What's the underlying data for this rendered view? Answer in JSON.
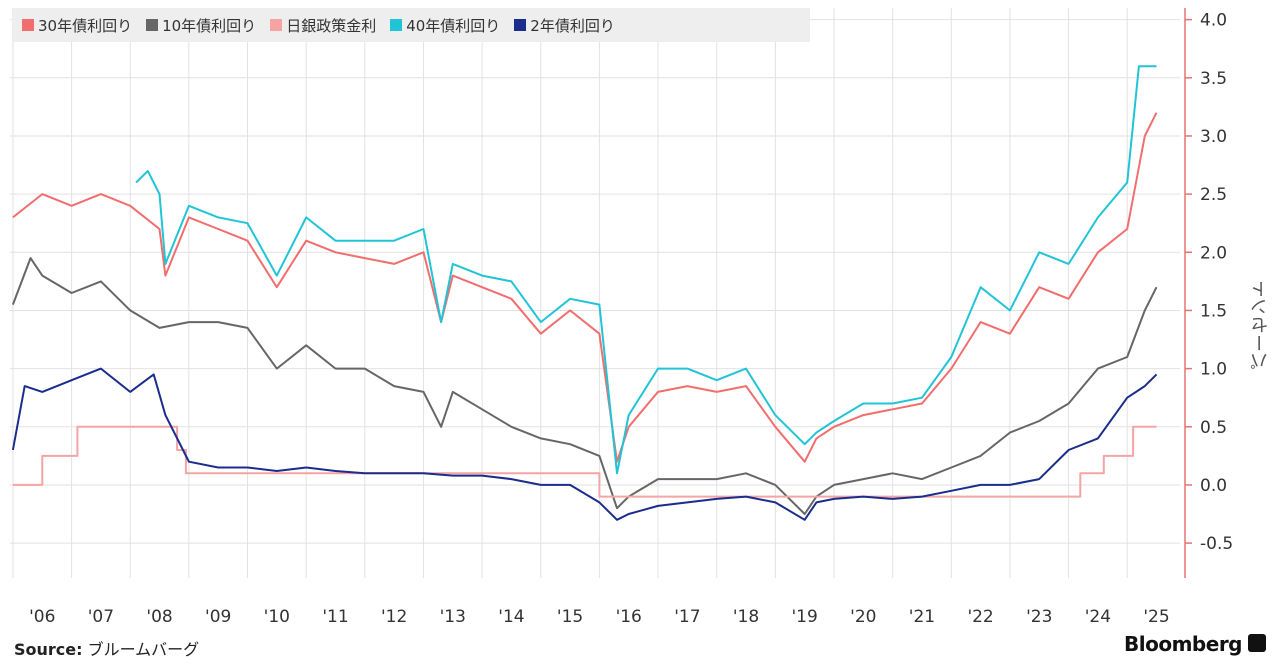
{
  "chart_data": {
    "type": "line",
    "title": "",
    "xlabel": "",
    "ylabel": "パーセント",
    "ylim": [
      -0.8,
      4.1
    ],
    "x_ticks": [
      "'06",
      "'07",
      "'08",
      "'09",
      "'10",
      "'11",
      "'12",
      "'13",
      "'14",
      "'15",
      "'16",
      "'17",
      "'18",
      "'19",
      "'20",
      "'21",
      "'22",
      "'23",
      "'24",
      "'25"
    ],
    "y_ticks": [
      4.0,
      3.5,
      3.0,
      2.5,
      2.0,
      1.5,
      1.0,
      0.5,
      0.0,
      -0.5
    ],
    "y_tick_labels": [
      "4.0",
      "3.5",
      "3.0",
      "2.5",
      "2.0",
      "1.5",
      "1.0",
      "0.5",
      "0.0",
      "-0.5"
    ],
    "grid": true,
    "legend_position": "top-left",
    "series": [
      {
        "name": "30年債利回り",
        "color": "#f26d6d",
        "x": [
          2006.0,
          2006.5,
          2007.0,
          2007.5,
          2008.0,
          2008.5,
          2008.6,
          2009.0,
          2009.5,
          2010.0,
          2010.5,
          2011.0,
          2011.5,
          2012.0,
          2012.5,
          2013.0,
          2013.3,
          2013.5,
          2014.0,
          2014.5,
          2015.0,
          2015.5,
          2016.0,
          2016.3,
          2016.5,
          2017.0,
          2017.5,
          2018.0,
          2018.5,
          2019.0,
          2019.5,
          2019.7,
          2020.0,
          2020.5,
          2021.0,
          2021.5,
          2022.0,
          2022.5,
          2023.0,
          2023.5,
          2024.0,
          2024.5,
          2025.0,
          2025.3,
          2025.5
        ],
        "y": [
          2.3,
          2.5,
          2.4,
          2.5,
          2.4,
          2.2,
          1.8,
          2.3,
          2.2,
          2.1,
          1.7,
          2.1,
          2.0,
          1.95,
          1.9,
          2.0,
          1.4,
          1.8,
          1.7,
          1.6,
          1.3,
          1.5,
          1.3,
          0.2,
          0.5,
          0.8,
          0.85,
          0.8,
          0.85,
          0.5,
          0.2,
          0.4,
          0.5,
          0.6,
          0.65,
          0.7,
          1.0,
          1.4,
          1.3,
          1.7,
          1.6,
          2.0,
          2.2,
          3.0,
          3.2
        ]
      },
      {
        "name": "10年債利回り",
        "color": "#666666",
        "x": [
          2006.0,
          2006.3,
          2006.5,
          2007.0,
          2007.5,
          2008.0,
          2008.5,
          2009.0,
          2009.5,
          2010.0,
          2010.5,
          2011.0,
          2011.5,
          2012.0,
          2012.5,
          2013.0,
          2013.3,
          2013.5,
          2014.0,
          2014.5,
          2015.0,
          2015.5,
          2016.0,
          2016.3,
          2016.5,
          2017.0,
          2017.5,
          2018.0,
          2018.5,
          2019.0,
          2019.5,
          2019.7,
          2020.0,
          2020.5,
          2021.0,
          2021.5,
          2022.0,
          2022.5,
          2023.0,
          2023.5,
          2024.0,
          2024.5,
          2025.0,
          2025.3,
          2025.5
        ],
        "y": [
          1.55,
          1.95,
          1.8,
          1.65,
          1.75,
          1.5,
          1.35,
          1.4,
          1.4,
          1.35,
          1.0,
          1.2,
          1.0,
          1.0,
          0.85,
          0.8,
          0.5,
          0.8,
          0.65,
          0.5,
          0.4,
          0.35,
          0.25,
          -0.2,
          -0.1,
          0.05,
          0.05,
          0.05,
          0.1,
          0.0,
          -0.25,
          -0.1,
          0.0,
          0.05,
          0.1,
          0.05,
          0.15,
          0.25,
          0.45,
          0.55,
          0.7,
          1.0,
          1.1,
          1.5,
          1.7
        ]
      },
      {
        "name": "日銀政策金利",
        "color": "#f5a3a3",
        "x": [
          2006.0,
          2006.5,
          2006.5,
          2007.1,
          2007.1,
          2008.8,
          2008.8,
          2008.95,
          2008.95,
          2016.0,
          2016.0,
          2024.2,
          2024.2,
          2024.6,
          2024.6,
          2025.1,
          2025.1,
          2025.5
        ],
        "y": [
          0.0,
          0.0,
          0.25,
          0.25,
          0.5,
          0.5,
          0.3,
          0.3,
          0.1,
          0.1,
          -0.1,
          -0.1,
          0.1,
          0.1,
          0.25,
          0.25,
          0.5,
          0.5
        ]
      },
      {
        "name": "40年債利回り",
        "color": "#21c4d6",
        "x": [
          2008.1,
          2008.3,
          2008.5,
          2008.6,
          2009.0,
          2009.5,
          2010.0,
          2010.5,
          2011.0,
          2011.5,
          2012.0,
          2012.5,
          2013.0,
          2013.3,
          2013.5,
          2014.0,
          2014.5,
          2015.0,
          2015.5,
          2016.0,
          2016.3,
          2016.5,
          2017.0,
          2017.5,
          2018.0,
          2018.5,
          2019.0,
          2019.5,
          2019.7,
          2020.0,
          2020.5,
          2021.0,
          2021.5,
          2022.0,
          2022.5,
          2023.0,
          2023.5,
          2024.0,
          2024.5,
          2025.0,
          2025.2,
          2025.5
        ],
        "y": [
          2.6,
          2.7,
          2.5,
          1.9,
          2.4,
          2.3,
          2.25,
          1.8,
          2.3,
          2.1,
          2.1,
          2.1,
          2.2,
          1.4,
          1.9,
          1.8,
          1.75,
          1.4,
          1.6,
          1.55,
          0.1,
          0.6,
          1.0,
          1.0,
          0.9,
          1.0,
          0.6,
          0.35,
          0.45,
          0.55,
          0.7,
          0.7,
          0.75,
          1.1,
          1.7,
          1.5,
          2.0,
          1.9,
          2.3,
          2.6,
          3.6,
          3.6
        ]
      },
      {
        "name": "2年債利回り",
        "color": "#1a2c8c",
        "x": [
          2006.0,
          2006.2,
          2006.5,
          2007.0,
          2007.5,
          2008.0,
          2008.4,
          2008.6,
          2008.9,
          2009.0,
          2009.5,
          2010.0,
          2010.5,
          2011.0,
          2011.5,
          2012.0,
          2012.5,
          2013.0,
          2013.5,
          2014.0,
          2014.5,
          2015.0,
          2015.5,
          2016.0,
          2016.3,
          2016.5,
          2017.0,
          2017.5,
          2018.0,
          2018.5,
          2019.0,
          2019.5,
          2019.7,
          2020.0,
          2020.5,
          2021.0,
          2021.5,
          2022.0,
          2022.5,
          2023.0,
          2023.5,
          2024.0,
          2024.5,
          2025.0,
          2025.3,
          2025.5
        ],
        "y": [
          0.3,
          0.85,
          0.8,
          0.9,
          1.0,
          0.8,
          0.95,
          0.6,
          0.3,
          0.2,
          0.15,
          0.15,
          0.12,
          0.15,
          0.12,
          0.1,
          0.1,
          0.1,
          0.08,
          0.08,
          0.05,
          0.0,
          0.0,
          -0.15,
          -0.3,
          -0.25,
          -0.18,
          -0.15,
          -0.12,
          -0.1,
          -0.15,
          -0.3,
          -0.15,
          -0.12,
          -0.1,
          -0.12,
          -0.1,
          -0.05,
          0.0,
          0.0,
          0.05,
          0.3,
          0.4,
          0.75,
          0.85,
          0.95
        ]
      }
    ]
  },
  "footer": {
    "source_label": "Source:",
    "source_text": " ブルームバーグ",
    "brand": "Bloomberg"
  }
}
